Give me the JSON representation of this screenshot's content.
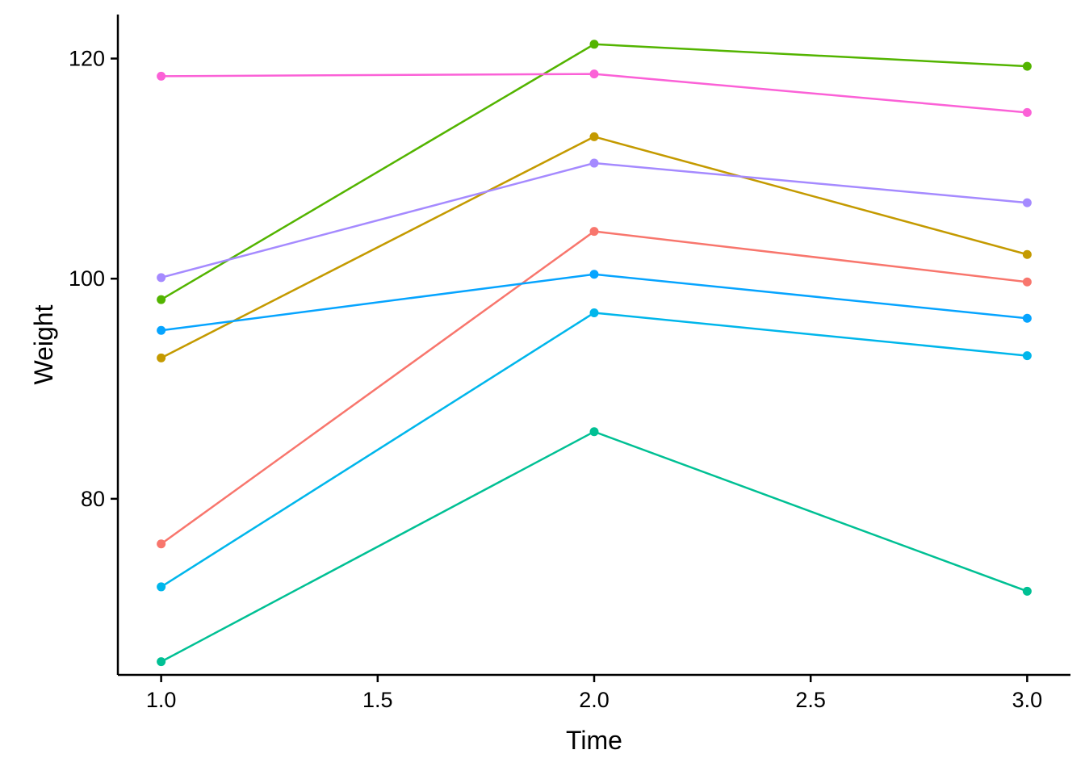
{
  "chart_data": {
    "type": "line",
    "title": "",
    "xlabel": "Time",
    "ylabel": "Weight",
    "xlim": [
      0.9,
      3.1
    ],
    "ylim": [
      64,
      124
    ],
    "x_ticks": [
      1.0,
      1.5,
      2.0,
      2.5,
      3.0
    ],
    "x_tick_labels": [
      "1.0",
      "1.5",
      "2.0",
      "2.5",
      "3.0"
    ],
    "y_ticks": [
      80,
      100,
      120
    ],
    "y_tick_labels": [
      "80",
      "100",
      "120"
    ],
    "grid": false,
    "legend": "none",
    "x": [
      1.0,
      2.0,
      3.0
    ],
    "series": [
      {
        "color": "#f8766d",
        "values": [
          75.9,
          104.3,
          99.7
        ]
      },
      {
        "color": "#c49a00",
        "values": [
          92.8,
          112.9,
          102.2
        ]
      },
      {
        "color": "#53b400",
        "values": [
          98.1,
          121.3,
          119.3
        ]
      },
      {
        "color": "#00c094",
        "values": [
          65.2,
          86.1,
          71.6
        ]
      },
      {
        "color": "#00b6eb",
        "values": [
          72.0,
          96.9,
          93.0
        ]
      },
      {
        "color": "#06a4ff",
        "values": [
          95.3,
          100.4,
          96.4
        ]
      },
      {
        "color": "#a58aff",
        "values": [
          100.1,
          110.5,
          106.9
        ]
      },
      {
        "color": "#fb61d7",
        "values": [
          118.4,
          118.6,
          115.1
        ]
      }
    ]
  }
}
